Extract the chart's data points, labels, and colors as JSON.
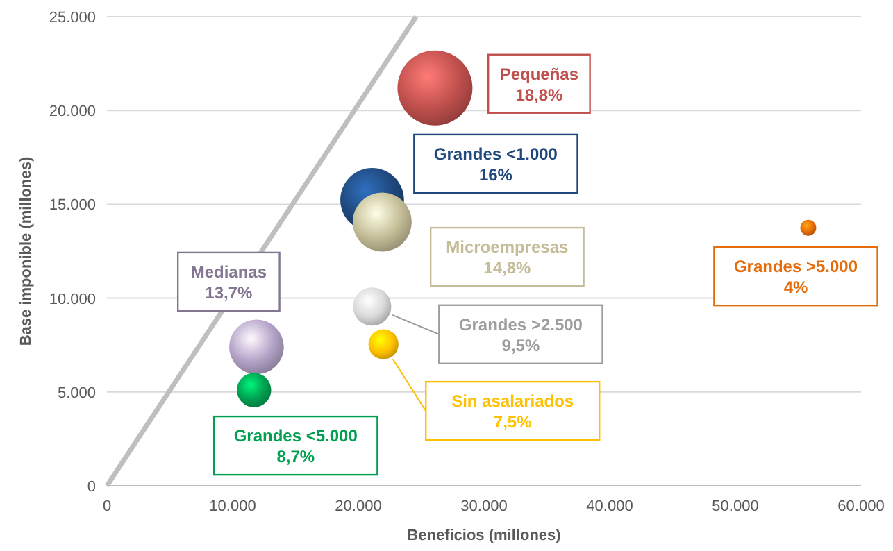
{
  "chart_data": {
    "type": "bubble",
    "xlabel": "Beneficios (millones)",
    "ylabel": "Base imponible (millones)",
    "xlim": [
      0,
      60000
    ],
    "ylim": [
      0,
      25000
    ],
    "xticks": [
      {
        "value": 0,
        "label": "0"
      },
      {
        "value": 10000,
        "label": "10.000"
      },
      {
        "value": 20000,
        "label": "20.000"
      },
      {
        "value": 30000,
        "label": "30.000"
      },
      {
        "value": 40000,
        "label": "40.000"
      },
      {
        "value": 50000,
        "label": "50.000"
      },
      {
        "value": 60000,
        "label": "60.000"
      }
    ],
    "yticks": [
      {
        "value": 0,
        "label": "0"
      },
      {
        "value": 5000,
        "label": "5.000"
      },
      {
        "value": 10000,
        "label": "10.000"
      },
      {
        "value": 15000,
        "label": "15.000"
      },
      {
        "value": 20000,
        "label": "20.000"
      },
      {
        "value": 25000,
        "label": "25.000"
      }
    ],
    "grid": "y",
    "series": [
      {
        "x": [
          26100,
          21100,
          21900,
          55800,
          21100,
          22000,
          11900,
          11700
        ],
        "values": [
          21200,
          15240,
          14050,
          13750,
          9550,
          7540,
          7400,
          5100
        ],
        "sizes": [
          1,
          0.72,
          0.62,
          0.045,
          0.26,
          0.16,
          0.53,
          0.21
        ],
        "colors": [
          "#c0504d",
          "#1f497d",
          "#c4bd97",
          "#e46c0a",
          "#d9d9d9",
          "#ffc000",
          "#b3a2c7",
          "#00a050"
        ]
      },
      {
        "type": "line",
        "x": [
          0,
          24600
        ],
        "values": [
          0,
          25000
        ],
        "color": "#bfbfbf"
      }
    ],
    "annotations": [
      "Pequeñas\n18,8%",
      "Grandes <1.000\n16%",
      "Microempresas\n14,8%",
      "Grandes >5.000\n4%",
      "Grandes >2.500\n9,5%",
      "Sin asalariados\n7,5%",
      "Medianas\n13,7%",
      "Grandes <5.000\n8,7%"
    ]
  }
}
